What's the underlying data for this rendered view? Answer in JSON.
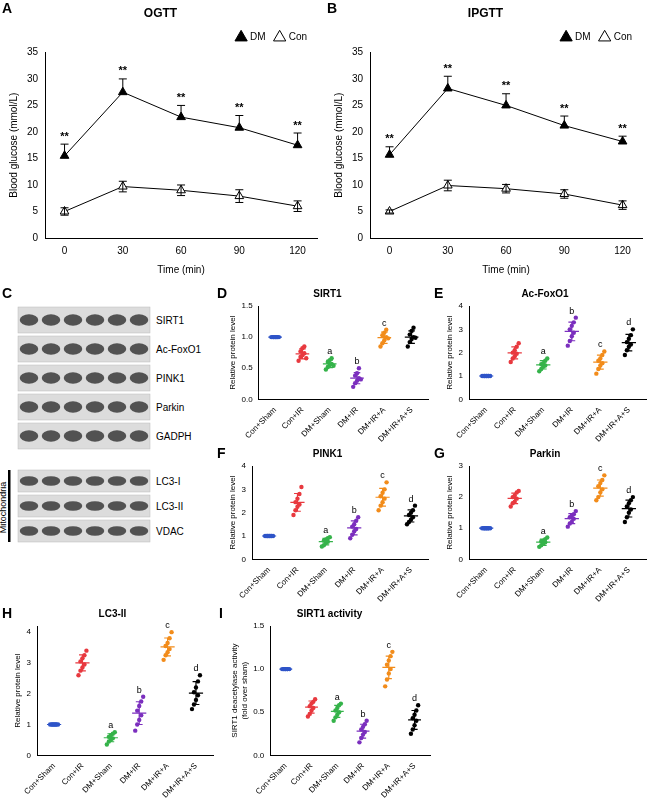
{
  "chart_data": [
    {
      "panel": "A",
      "type": "line",
      "title": "OGTT",
      "x_label": "Time (min)",
      "y_label": "Blood glucose (mmol/L)",
      "x": [
        0,
        30,
        60,
        90,
        120
      ],
      "xlim": [
        -10,
        130
      ],
      "xticks": [
        0,
        30,
        60,
        90,
        120
      ],
      "ylim": [
        0,
        35
      ],
      "yticks": [
        0,
        5,
        10,
        15,
        20,
        25,
        30,
        35
      ],
      "grid": false,
      "legend": "upper right",
      "series": [
        {
          "name": "DM",
          "color": "#000000",
          "marker": "filled_triangle",
          "values": [
            15.5,
            27.5,
            22.8,
            20.8,
            17.5
          ],
          "error": [
            2.2,
            2.5,
            2.2,
            2.3,
            2.3
          ]
        },
        {
          "name": "Con",
          "color": "#000000",
          "marker": "open_triangle",
          "values": [
            5.0,
            9.7,
            9.0,
            7.9,
            6.0
          ],
          "error": [
            0.7,
            1.0,
            1.0,
            1.2,
            1.0
          ]
        }
      ],
      "significance": [
        "**",
        "**",
        "**",
        "**",
        "**"
      ]
    },
    {
      "panel": "B",
      "type": "line",
      "title": "IPGTT",
      "x_label": "Time (min)",
      "y_label": "Blood glucose (mmol/L)",
      "x": [
        0,
        30,
        60,
        90,
        120
      ],
      "xlim": [
        -10,
        130
      ],
      "xticks": [
        0,
        30,
        60,
        90,
        120
      ],
      "ylim": [
        0,
        35
      ],
      "yticks": [
        0,
        5,
        10,
        15,
        20,
        25,
        30,
        35
      ],
      "grid": false,
      "legend": "upper right",
      "series": [
        {
          "name": "DM",
          "color": "#000000",
          "marker": "filled_triangle",
          "values": [
            15.7,
            28.2,
            25.0,
            21.2,
            18.2
          ],
          "error": [
            1.5,
            2.3,
            2.2,
            1.8,
            1.0
          ]
        },
        {
          "name": "Con",
          "color": "#000000",
          "marker": "open_triangle",
          "values": [
            5.0,
            9.9,
            9.3,
            8.3,
            6.2
          ],
          "error": [
            0.3,
            1.0,
            0.8,
            0.8,
            0.8
          ]
        }
      ],
      "significance": [
        "**",
        "**",
        "**",
        "**",
        "**"
      ]
    },
    {
      "panel": "D",
      "type": "dot_plot",
      "title": "SIRT1",
      "y_label": "Relative protein level",
      "categories": [
        "Con+Sham",
        "Con+IR",
        "DM+Sham",
        "DM+IR",
        "DM+IR+A",
        "DM+IR+A+S"
      ],
      "colors": [
        "#2e54c8",
        "#e8393f",
        "#35b34a",
        "#7b2fbe",
        "#f28c1b",
        "#000000"
      ],
      "ylim": [
        0,
        1.5
      ],
      "yticks": [
        {
          "value": 0,
          "label": "0.0"
        },
        {
          "value": 0.5,
          "label": "0.5"
        },
        {
          "value": 1,
          "label": "1.0"
        },
        {
          "value": 1.5,
          "label": "1.5"
        }
      ],
      "grid": false,
      "points": [
        [
          1,
          1,
          1,
          1,
          1,
          1,
          1,
          1
        ],
        [
          0.62,
          0.68,
          0.71,
          0.74,
          0.77,
          0.82,
          0.85,
          0.66
        ],
        [
          0.48,
          0.52,
          0.55,
          0.57,
          0.6,
          0.63,
          0.66,
          0.54
        ],
        [
          0.2,
          0.26,
          0.3,
          0.34,
          0.38,
          0.42,
          0.5,
          0.32
        ],
        [
          0.85,
          0.9,
          0.95,
          1.0,
          1.03,
          1.07,
          1.12,
          0.98
        ],
        [
          0.85,
          0.92,
          0.97,
          1.0,
          1.04,
          1.1,
          1.15,
          0.99
        ]
      ],
      "means": [
        1,
        0.73,
        0.57,
        0.34,
        0.99,
        1.0
      ],
      "sd": [
        0,
        0.08,
        0.06,
        0.09,
        0.09,
        0.1
      ],
      "group_letters": [
        null,
        null,
        "a",
        "b",
        "c",
        null
      ]
    },
    {
      "panel": "E",
      "type": "dot_plot",
      "title": "Ac-FoxO1",
      "y_label": "Relative protein level",
      "categories": [
        "Con+Sham",
        "Con+IR",
        "DM+Sham",
        "DM+IR",
        "DM+IR+A",
        "DM+IR+A+S"
      ],
      "colors": [
        "#2e54c8",
        "#e8393f",
        "#35b34a",
        "#7b2fbe",
        "#f28c1b",
        "#000000"
      ],
      "ylim": [
        0,
        4
      ],
      "yticks": [
        0,
        1,
        2,
        3,
        4
      ],
      "grid": false,
      "points": [
        [
          1,
          1,
          1,
          1,
          1,
          1,
          1,
          1
        ],
        [
          1.6,
          1.75,
          1.85,
          1.95,
          2.0,
          2.1,
          2.25,
          2.4
        ],
        [
          1.2,
          1.3,
          1.4,
          1.45,
          1.5,
          1.55,
          1.65,
          1.75
        ],
        [
          2.3,
          2.5,
          2.7,
          2.85,
          3.0,
          3.15,
          3.3,
          3.5
        ],
        [
          1.1,
          1.3,
          1.45,
          1.55,
          1.65,
          1.75,
          1.9,
          2.05
        ],
        [
          1.9,
          2.1,
          2.25,
          2.35,
          2.45,
          2.6,
          2.75,
          3.0
        ]
      ],
      "means": [
        1,
        1.99,
        1.48,
        2.91,
        1.59,
        2.43
      ],
      "sd": [
        0,
        0.26,
        0.18,
        0.4,
        0.3,
        0.35
      ],
      "group_letters": [
        null,
        null,
        "a",
        "b",
        "c",
        "d"
      ]
    },
    {
      "panel": "F",
      "type": "dot_plot",
      "title": "PINK1",
      "y_label": "Relative protein level",
      "categories": [
        "Con+Sham",
        "Con+IR",
        "DM+Sham",
        "DM+IR",
        "DM+IR+A",
        "DM+IR+A+S"
      ],
      "colors": [
        "#2e54c8",
        "#e8393f",
        "#35b34a",
        "#7b2fbe",
        "#f28c1b",
        "#000000"
      ],
      "ylim": [
        0,
        4
      ],
      "yticks": [
        0,
        1,
        2,
        3,
        4
      ],
      "grid": false,
      "points": [
        [
          1,
          1,
          1,
          1,
          1,
          1,
          1,
          1
        ],
        [
          1.9,
          2.1,
          2.25,
          2.35,
          2.45,
          2.6,
          2.8,
          3.1
        ],
        [
          0.55,
          0.6,
          0.7,
          0.75,
          0.8,
          0.85,
          0.9,
          0.95
        ],
        [
          0.9,
          1.05,
          1.2,
          1.3,
          1.4,
          1.5,
          1.65,
          1.8
        ],
        [
          2.1,
          2.3,
          2.45,
          2.6,
          2.7,
          2.85,
          3.0,
          3.3
        ],
        [
          1.5,
          1.6,
          1.7,
          1.8,
          1.9,
          2.0,
          2.1,
          2.3
        ]
      ],
      "means": [
        1,
        2.44,
        0.76,
        1.35,
        2.66,
        1.86
      ],
      "sd": [
        0,
        0.38,
        0.14,
        0.3,
        0.38,
        0.26
      ],
      "group_letters": [
        null,
        null,
        "a",
        "b",
        "c",
        "d"
      ]
    },
    {
      "panel": "G",
      "type": "dot_plot",
      "title": "Parkin",
      "y_label": "Relative protein level",
      "categories": [
        "Con+Sham",
        "Con+IR",
        "DM+Sham",
        "DM+IR",
        "DM+IR+A",
        "DM+IR+A+S"
      ],
      "colors": [
        "#2e54c8",
        "#e8393f",
        "#35b34a",
        "#7b2fbe",
        "#f28c1b",
        "#000000"
      ],
      "ylim": [
        0,
        3
      ],
      "yticks": [
        0,
        1,
        2,
        3
      ],
      "grid": false,
      "points": [
        [
          1,
          1,
          1,
          1,
          1,
          1,
          1,
          1
        ],
        [
          1.7,
          1.8,
          1.85,
          1.95,
          2.0,
          2.05,
          2.15,
          2.2
        ],
        [
          0.4,
          0.45,
          0.5,
          0.55,
          0.58,
          0.6,
          0.65,
          0.7
        ],
        [
          1.05,
          1.15,
          1.2,
          1.3,
          1.35,
          1.4,
          1.45,
          1.55
        ],
        [
          1.9,
          2.0,
          2.15,
          2.25,
          2.35,
          2.45,
          2.55,
          2.7
        ],
        [
          1.2,
          1.35,
          1.5,
          1.6,
          1.7,
          1.8,
          1.9,
          2.0
        ]
      ],
      "means": [
        1,
        1.96,
        0.55,
        1.31,
        2.29,
        1.63
      ],
      "sd": [
        0,
        0.17,
        0.1,
        0.16,
        0.26,
        0.27
      ],
      "group_letters": [
        null,
        null,
        "a",
        "b",
        "c",
        "d"
      ]
    },
    {
      "panel": "H",
      "type": "dot_plot",
      "title": "LC3-II",
      "y_label": "Relative protein level",
      "categories": [
        "Con+Sham",
        "Con+IR",
        "DM+Sham",
        "DM+IR",
        "DM+IR+A",
        "DM+IR+A+S"
      ],
      "colors": [
        "#2e54c8",
        "#e8393f",
        "#35b34a",
        "#7b2fbe",
        "#f28c1b",
        "#000000"
      ],
      "ylim": [
        0,
        4.2
      ],
      "yticks": [
        0,
        1,
        2,
        3,
        4
      ],
      "grid": false,
      "points": [
        [
          1,
          1,
          1,
          1,
          1,
          1,
          1,
          1
        ],
        [
          2.6,
          2.75,
          2.85,
          2.95,
          3.05,
          3.15,
          3.25,
          3.4
        ],
        [
          0.35,
          0.45,
          0.5,
          0.55,
          0.6,
          0.65,
          0.7,
          0.75
        ],
        [
          0.8,
          1.0,
          1.15,
          1.3,
          1.45,
          1.6,
          1.75,
          1.9
        ],
        [
          3.1,
          3.25,
          3.35,
          3.45,
          3.55,
          3.65,
          3.8,
          4.0
        ],
        [
          1.5,
          1.65,
          1.8,
          1.95,
          2.05,
          2.2,
          2.4,
          2.6
        ]
      ],
      "means": [
        1,
        3.0,
        0.57,
        1.37,
        3.52,
        2.02
      ],
      "sd": [
        0,
        0.26,
        0.13,
        0.37,
        0.29,
        0.37
      ],
      "group_letters": [
        null,
        null,
        "a",
        "b",
        "c",
        "d"
      ]
    },
    {
      "panel": "I",
      "type": "dot_plot",
      "title": "SIRT1 activity",
      "y_label": [
        "SIRT1 deacetylase activity",
        "(fold over sham)"
      ],
      "categories": [
        "Con+Sham",
        "Con+IR",
        "DM+Sham",
        "DM+IR",
        "DM+IR+A",
        "DM+IR+A+S"
      ],
      "colors": [
        "#2e54c8",
        "#e8393f",
        "#35b34a",
        "#7b2fbe",
        "#f28c1b",
        "#000000"
      ],
      "ylim": [
        0,
        1.5
      ],
      "yticks": [
        {
          "value": 0,
          "label": "0.0"
        },
        {
          "value": 0.5,
          "label": "0.5"
        },
        {
          "value": 1,
          "label": "1.0"
        },
        {
          "value": 1.5,
          "label": "1.5"
        }
      ],
      "grid": false,
      "points": [
        [
          1,
          1,
          1,
          1,
          1,
          1,
          1,
          1
        ],
        [
          0.45,
          0.48,
          0.52,
          0.55,
          0.57,
          0.6,
          0.62,
          0.65
        ],
        [
          0.4,
          0.44,
          0.47,
          0.5,
          0.52,
          0.55,
          0.58,
          0.6
        ],
        [
          0.15,
          0.2,
          0.24,
          0.27,
          0.3,
          0.33,
          0.36,
          0.4
        ],
        [
          0.8,
          0.88,
          0.95,
          1.0,
          1.05,
          1.1,
          1.15,
          1.2
        ],
        [
          0.25,
          0.3,
          0.35,
          0.4,
          0.43,
          0.47,
          0.52,
          0.58
        ]
      ],
      "means": [
        1,
        0.56,
        0.51,
        0.28,
        1.02,
        0.41
      ],
      "sd": [
        0,
        0.07,
        0.07,
        0.08,
        0.13,
        0.11
      ],
      "group_letters": [
        null,
        null,
        "a",
        "b",
        "c",
        "d"
      ]
    }
  ],
  "blot": {
    "panel": "C",
    "rows": [
      "SIRT1",
      "Ac-FoxO1",
      "PINK1",
      "Parkin",
      "GADPH"
    ],
    "group_label": "Mitochondria",
    "group_rows": [
      "LC3-I",
      "LC3-II",
      "VDAC"
    ]
  }
}
